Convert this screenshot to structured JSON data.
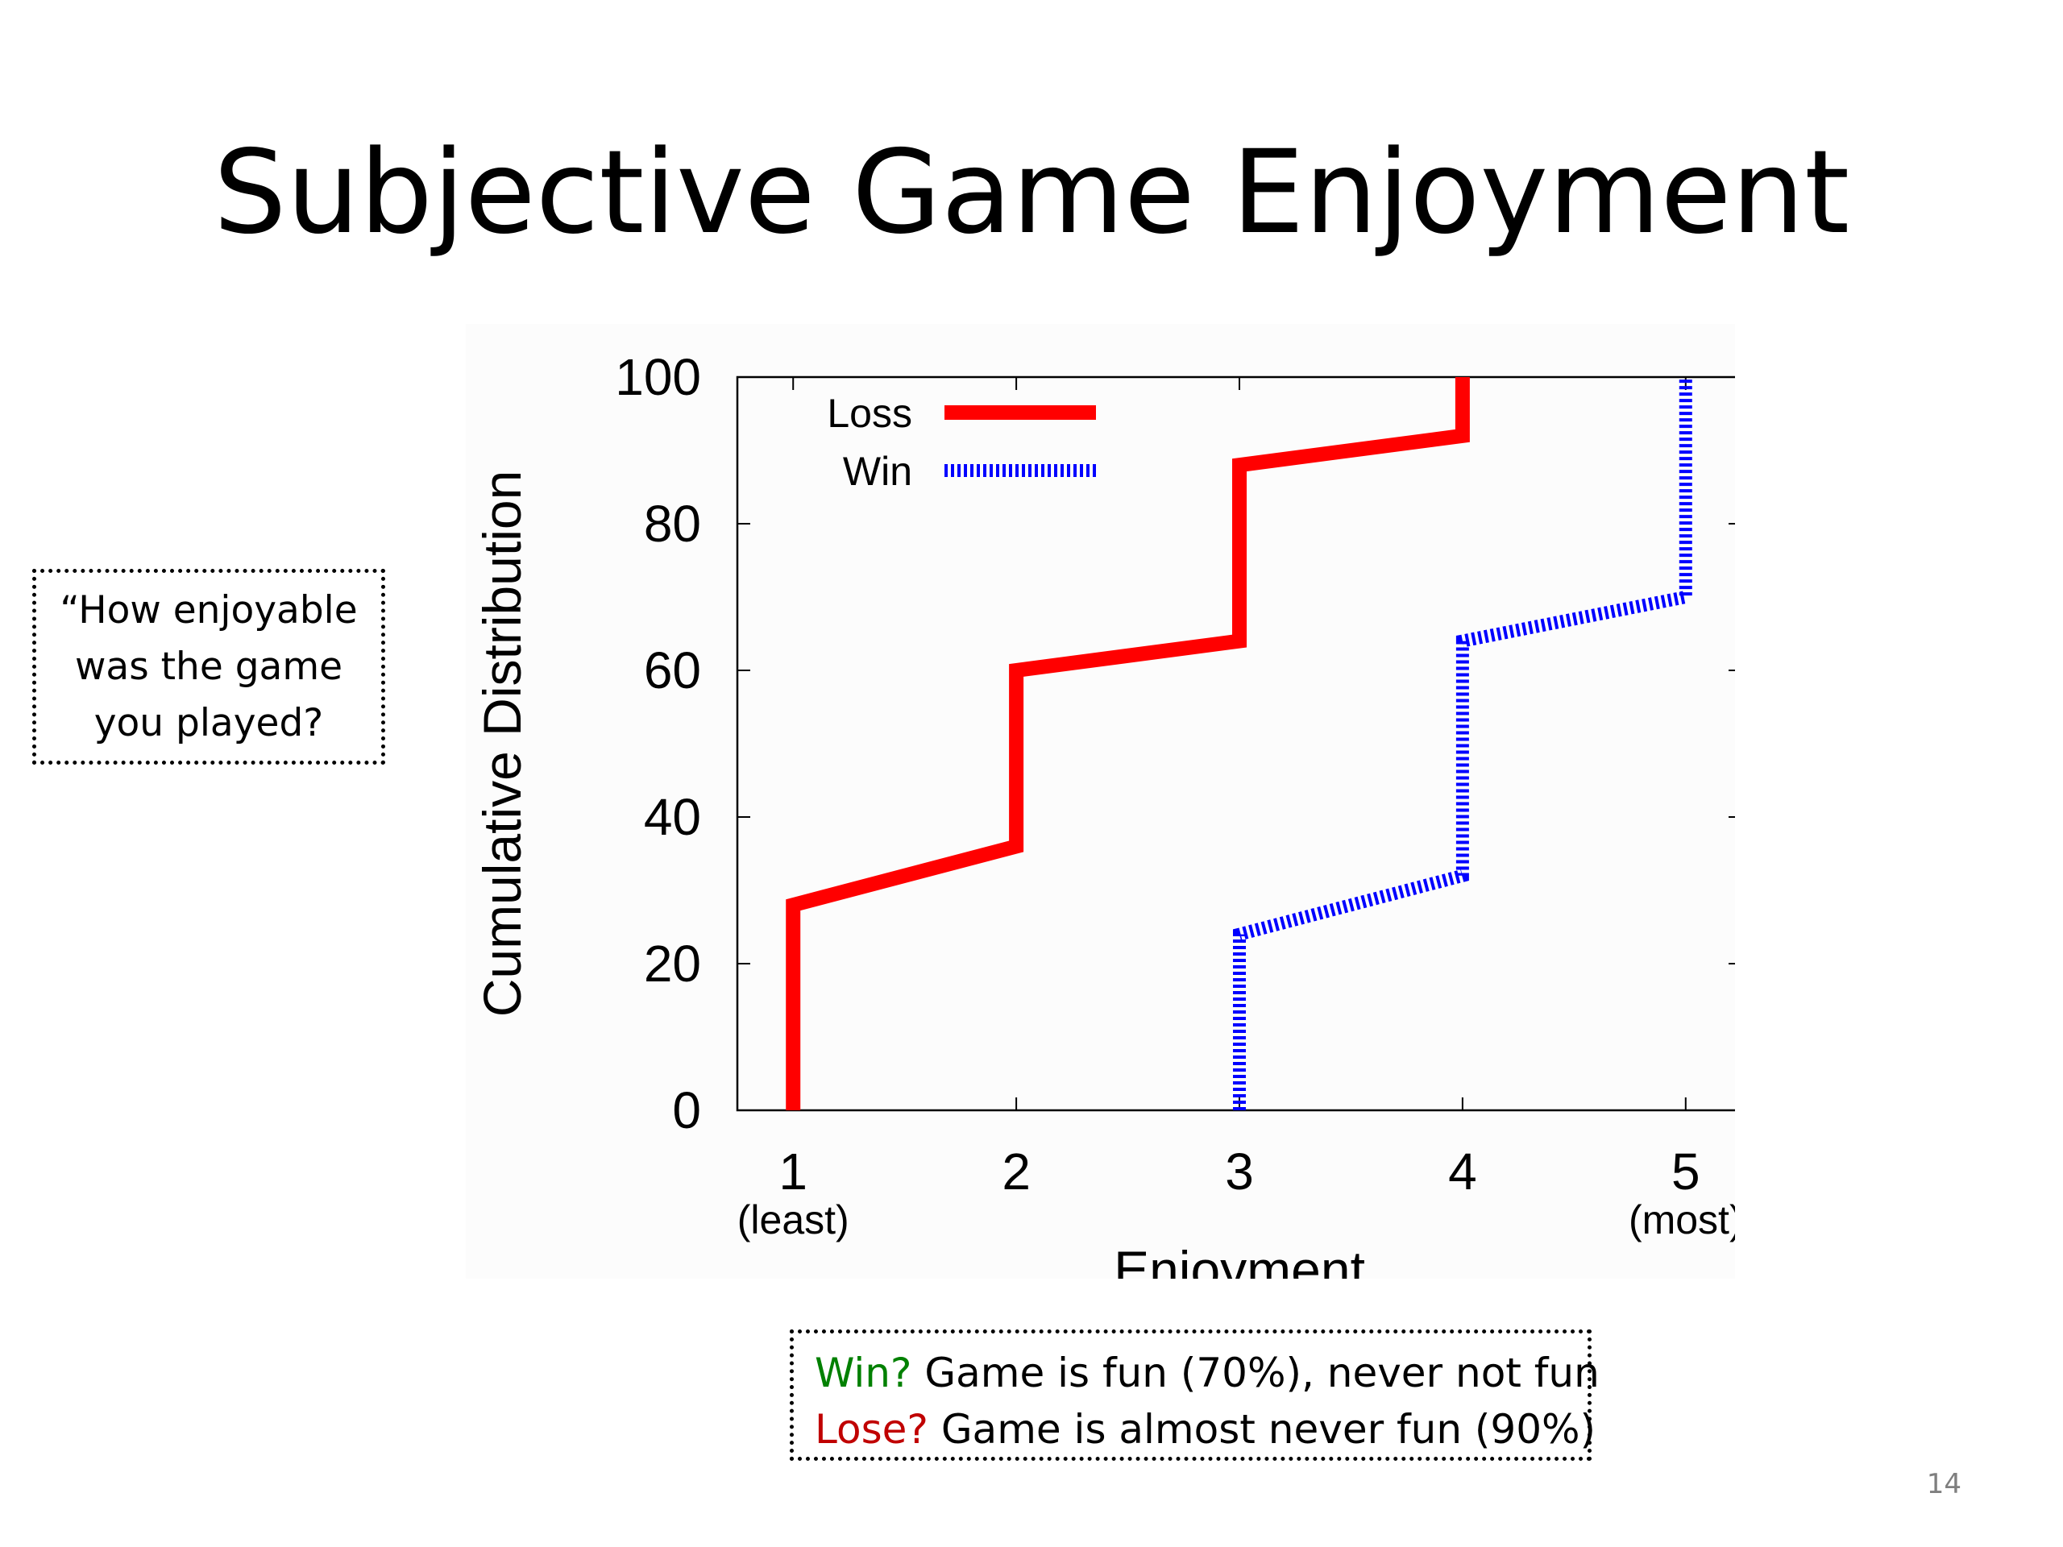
{
  "slide": {
    "title": "Subjective Game Enjoyment",
    "page_number": "14"
  },
  "question_callout": {
    "lines": [
      "“How enjoyable",
      "was the game",
      "you played?"
    ]
  },
  "summary_callout": {
    "win_prefix": "Win?",
    "win_text": " Game is fun (70%), never not fun",
    "lose_prefix": "Lose?",
    "lose_text": " Game is almost never fun (90%)",
    "win_color": "#008000",
    "lose_color": "#c00000"
  },
  "chart_data": {
    "type": "line",
    "step": "cumulative distribution, connected points",
    "xlabel": "Enjoyment",
    "ylabel": "Cumulative Distribution",
    "x_ticks": [
      "1",
      "2",
      "3",
      "4",
      "5"
    ],
    "x_tick_sublabels": {
      "1": "(least)",
      "5": "(most)"
    },
    "y_ticks": [
      "0",
      "20",
      "40",
      "60",
      "80",
      "100"
    ],
    "xlim": [
      0.75,
      5.25
    ],
    "ylim": [
      0,
      100
    ],
    "grid": false,
    "legend_position": "top-left",
    "series": [
      {
        "name": "Loss",
        "color": "#ff0000",
        "style": "solid",
        "points": [
          [
            1,
            0
          ],
          [
            1,
            28
          ],
          [
            2,
            36
          ],
          [
            2,
            60
          ],
          [
            3,
            64
          ],
          [
            3,
            88
          ],
          [
            4,
            92
          ],
          [
            4,
            100
          ]
        ]
      },
      {
        "name": "Win",
        "color": "#0000ff",
        "style": "dotted",
        "points": [
          [
            3,
            0
          ],
          [
            3,
            24
          ],
          [
            4,
            32
          ],
          [
            4,
            64
          ],
          [
            5,
            70
          ],
          [
            5,
            100
          ]
        ]
      }
    ]
  }
}
